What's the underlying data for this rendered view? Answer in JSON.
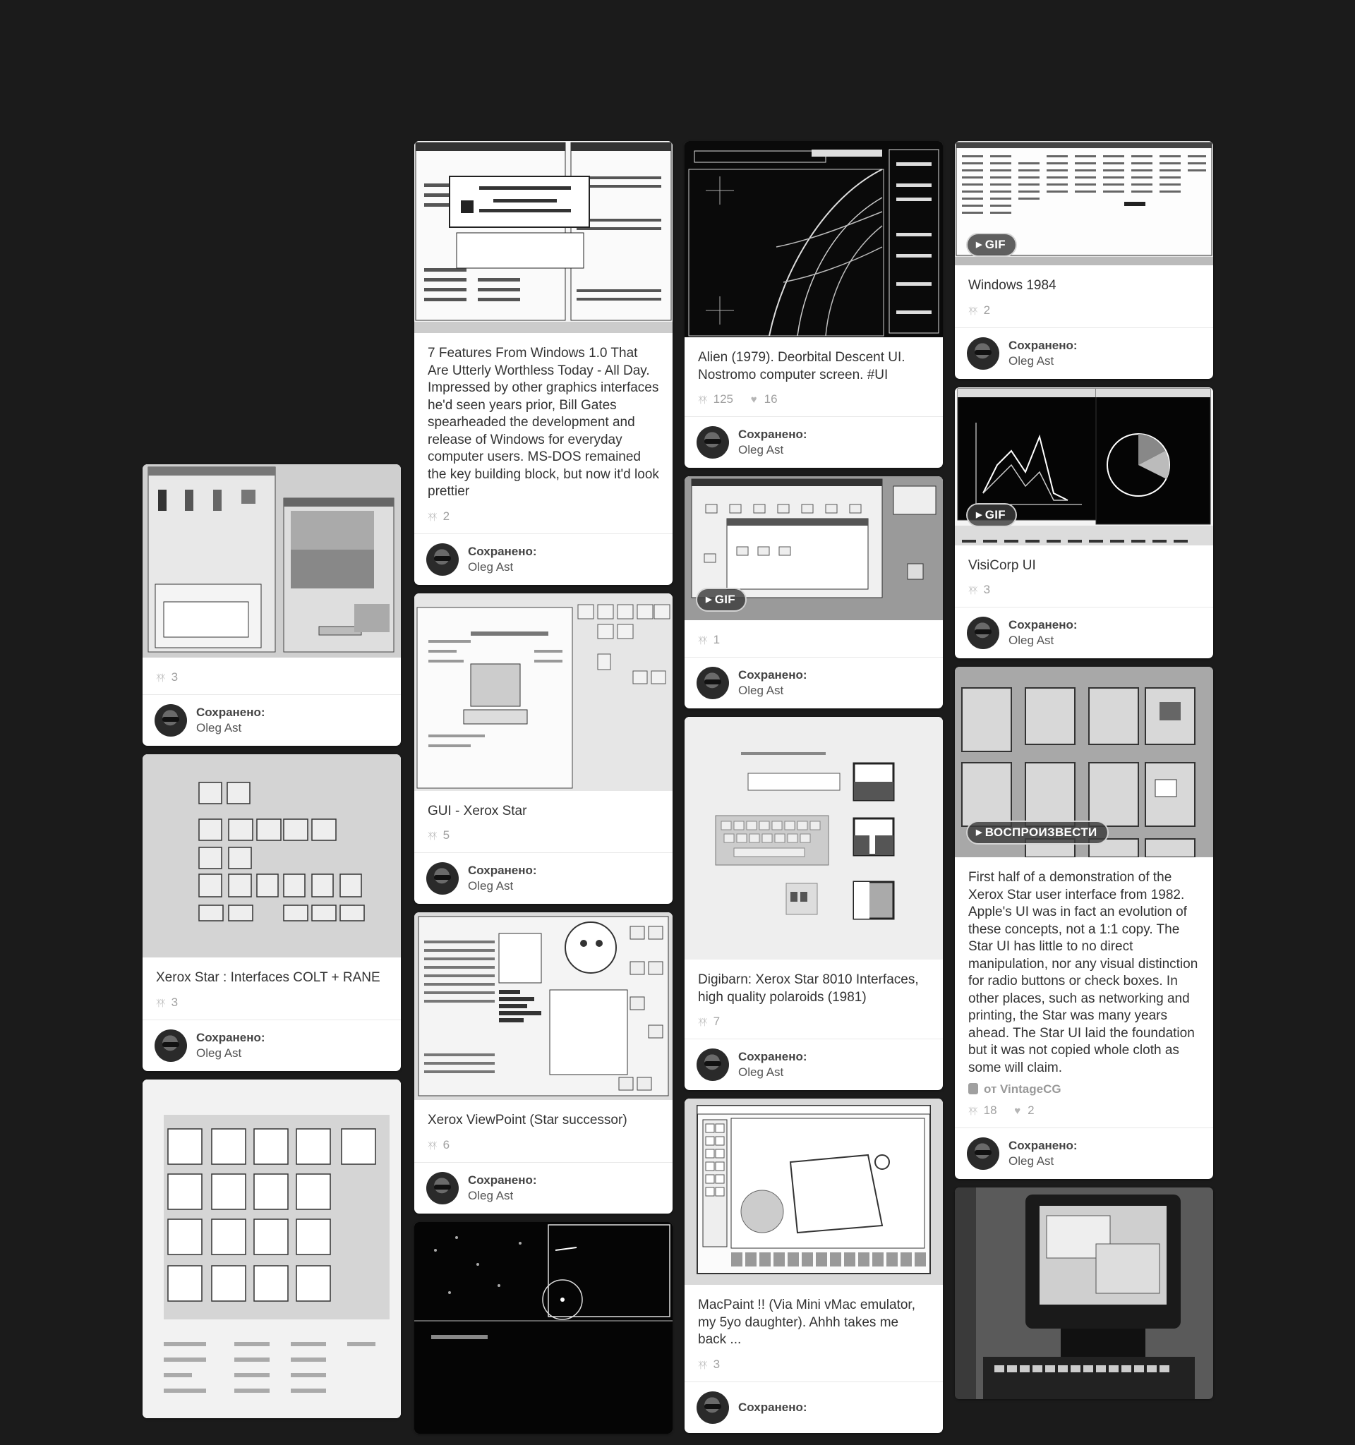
{
  "pins": {
    "p1": {
      "desc": "",
      "repins": "3",
      "saved_label": "Сохранено:",
      "user": "Oleg Ast"
    },
    "p2": {
      "desc": "Xerox Star : Interfaces COLT + RANE",
      "repins": "3",
      "saved_label": "Сохранено:",
      "user": "Oleg Ast"
    },
    "p3": {
      "desc": "",
      "repins": "",
      "saved_label": "",
      "user": ""
    },
    "p4": {
      "desc": "7 Features From Windows 1.0 That Are Utterly Worthless Today - All Day. Impressed by other graphics interfaces he'd seen years prior, Bill Gates spearheaded the development and release of Windows for everyday computer users. MS-DOS remained the key building block, but now it'd look prettier",
      "repins": "2",
      "saved_label": "Сохранено:",
      "user": "Oleg Ast"
    },
    "p5": {
      "desc": "GUI - Xerox Star",
      "repins": "5",
      "saved_label": "Сохранено:",
      "user": "Oleg Ast"
    },
    "p6": {
      "desc": "Xerox ViewPoint (Star successor)",
      "repins": "6",
      "saved_label": "Сохранено:",
      "user": "Oleg Ast"
    },
    "p7": {
      "desc": "",
      "repins": "",
      "saved_label": "",
      "user": ""
    },
    "p8": {
      "desc": "Alien (1979). Deorbital Descent UI. Nostromo computer screen. #UI",
      "repins": "125",
      "likes": "16",
      "saved_label": "Сохранено:",
      "user": "Oleg Ast"
    },
    "p9": {
      "desc": "",
      "repins": "1",
      "badge": "GIF",
      "saved_label": "Сохранено:",
      "user": "Oleg Ast"
    },
    "p10": {
      "desc": "Digibarn: Xerox Star 8010 Interfaces, high quality polaroids (1981)",
      "repins": "7",
      "saved_label": "Сохранено:",
      "user": "Oleg Ast"
    },
    "p11": {
      "desc": "MacPaint !! (Via Mini vMac emulator, my 5yo daughter). Ahhh takes me back ...",
      "repins": "3",
      "saved_label": "Сохранено:",
      "user": ""
    },
    "p12": {
      "desc": "Windows 1984",
      "repins": "2",
      "badge": "GIF",
      "saved_label": "Сохранено:",
      "user": "Oleg Ast"
    },
    "p13": {
      "desc": "VisiCorp UI",
      "repins": "3",
      "badge": "GIF",
      "saved_label": "Сохранено:",
      "user": "Oleg Ast"
    },
    "p14": {
      "desc": "First half of a demonstration of the Xerox Star user interface from 1982. Apple's UI was in fact an evolution of these concepts, not a 1:1 copy. The Star UI has little to no direct manipulation, nor any visual distinction for radio buttons or check boxes. In other places, such as networking and printing, the Star was many years ahead. The Star UI laid the foundation but it was not copied whole cloth as some will claim.",
      "source": "от VintageCG",
      "repins": "18",
      "likes": "2",
      "badge": "ВОСПРОИЗВЕСТИ",
      "saved_label": "Сохранено:",
      "user": "Oleg Ast"
    },
    "p15": {
      "desc": "",
      "repins": "",
      "saved_label": "",
      "user": ""
    }
  },
  "colors": {
    "background": "#1b1b1b",
    "card": "#ffffff",
    "text": "#333333",
    "muted": "#a0a0a0"
  },
  "icons": {
    "repin": "repin-icon",
    "like": "heart-icon",
    "play": "play-icon",
    "source": "youtube-icon"
  }
}
